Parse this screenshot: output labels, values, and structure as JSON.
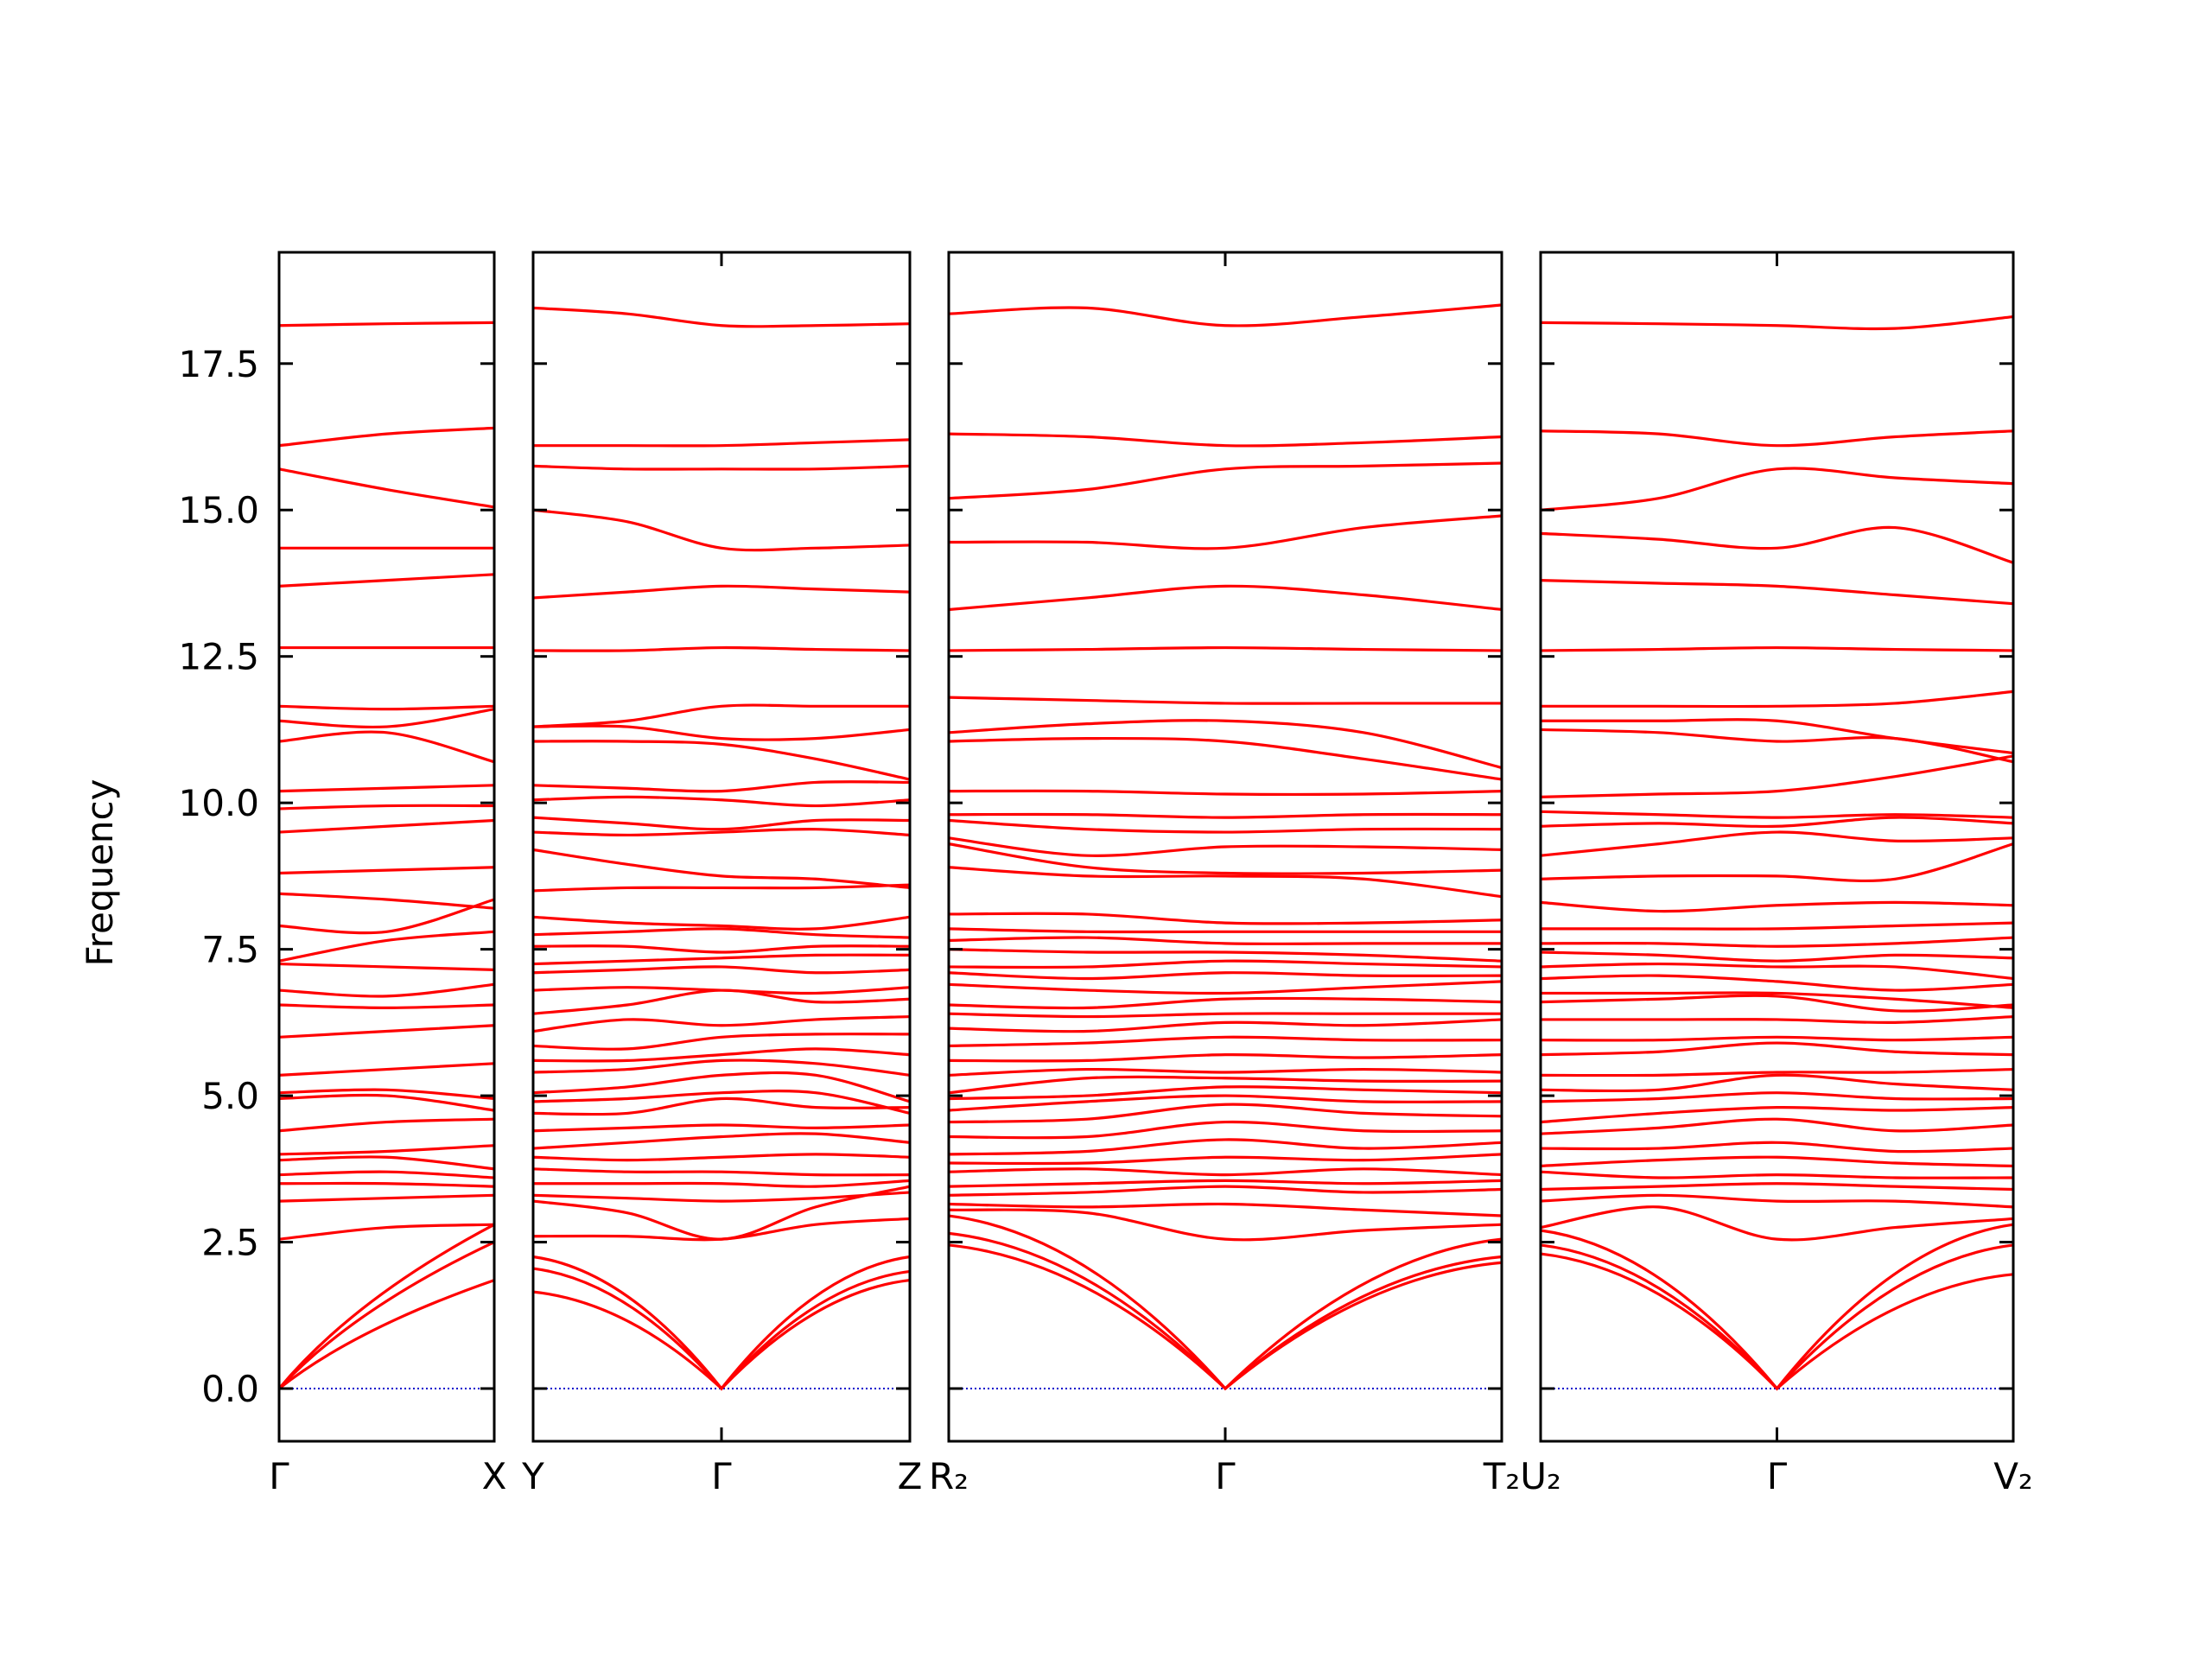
{
  "chart_data": {
    "type": "line",
    "title": "",
    "ylabel": "Frequency",
    "xlabel": "",
    "ylim": [
      -0.9,
      19.4
    ],
    "yticks": [
      "0.0",
      "2.5",
      "5.0",
      "7.5",
      "10.0",
      "12.5",
      "15.0",
      "17.5"
    ],
    "ytick_values": [
      0,
      2.5,
      5,
      7.5,
      10,
      12.5,
      15,
      17.5
    ],
    "grid": false,
    "legend": "none",
    "colors": {
      "bands": "#ff0000",
      "zero_line": "#0000cc",
      "axes": "#000000"
    },
    "panels": [
      {
        "start_label": "Γ",
        "end_label": "X",
        "gamma_position": "start",
        "acoustic": [
          {
            "y": [
              0,
              1.3,
              1.85
            ],
            "cusp": false
          },
          {
            "y": [
              0,
              1.7,
              2.5
            ],
            "cusp": false
          },
          {
            "y": [
              0,
              2.9,
              2.8
            ],
            "cusp": false
          }
        ],
        "bands": [
          [
            2.55,
            2.75,
            2.8
          ],
          [
            3.2,
            3.25,
            3.3
          ],
          [
            3.5,
            3.5,
            3.45
          ],
          [
            3.65,
            3.7,
            3.6
          ],
          [
            3.9,
            3.95,
            3.75
          ],
          [
            4.0,
            4.05,
            4.15
          ],
          [
            4.4,
            4.55,
            4.6
          ],
          [
            4.95,
            5.0,
            4.75
          ],
          [
            5.05,
            5.1,
            4.95
          ],
          [
            5.35,
            5.45,
            5.55
          ],
          [
            6.0,
            6.1,
            6.2
          ],
          [
            6.55,
            6.5,
            6.55
          ],
          [
            6.8,
            6.7,
            6.9
          ],
          [
            7.25,
            7.2,
            7.15
          ],
          [
            7.3,
            7.65,
            7.8
          ],
          [
            7.9,
            7.8,
            8.35
          ],
          [
            8.45,
            8.35,
            8.2
          ],
          [
            8.8,
            8.85,
            8.9
          ],
          [
            9.5,
            9.6,
            9.7
          ],
          [
            9.9,
            9.95,
            9.95
          ],
          [
            10.2,
            10.25,
            10.3
          ],
          [
            11.05,
            11.2,
            10.7
          ],
          [
            11.4,
            11.3,
            11.6
          ],
          [
            11.65,
            11.6,
            11.65
          ],
          [
            12.65,
            12.65,
            12.65
          ],
          [
            13.7,
            13.8,
            13.9
          ],
          [
            14.35,
            14.35,
            14.35
          ],
          [
            15.7,
            15.35,
            15.05
          ],
          [
            16.1,
            16.3,
            16.4
          ],
          [
            18.15,
            18.18,
            18.2
          ]
        ]
      },
      {
        "start_label": "Y",
        "end_label": "Z",
        "gamma_label": "Γ",
        "gamma_position": "middle",
        "acoustic": [
          {
            "y": [
              1.65,
              1.2,
              0,
              1.3,
              1.85
            ],
            "cusp": true
          },
          {
            "y": [
              2.05,
              1.5,
              0,
              1.6,
              2.0
            ],
            "cusp": true
          },
          {
            "y": [
              2.25,
              1.9,
              0,
              2.0,
              2.25
            ],
            "cusp": true
          }
        ],
        "bands": [
          [
            2.6,
            2.6,
            2.55,
            2.8,
            2.9
          ],
          [
            3.2,
            3.0,
            2.55,
            3.1,
            3.45
          ],
          [
            3.3,
            3.25,
            3.2,
            3.25,
            3.35
          ],
          [
            3.5,
            3.5,
            3.5,
            3.45,
            3.55
          ],
          [
            3.75,
            3.7,
            3.7,
            3.65,
            3.65
          ],
          [
            3.95,
            3.9,
            3.95,
            4.0,
            3.95
          ],
          [
            4.1,
            4.2,
            4.3,
            4.35,
            4.2
          ],
          [
            4.4,
            4.45,
            4.5,
            4.45,
            4.5
          ],
          [
            4.7,
            4.7,
            4.95,
            4.8,
            4.8
          ],
          [
            4.9,
            4.95,
            5.05,
            5.05,
            4.7
          ],
          [
            5.05,
            5.15,
            5.35,
            5.35,
            4.9
          ],
          [
            5.4,
            5.45,
            5.6,
            5.55,
            5.35
          ],
          [
            5.6,
            5.6,
            5.7,
            5.8,
            5.7
          ],
          [
            5.85,
            5.8,
            6.0,
            6.05,
            6.05
          ],
          [
            6.1,
            6.3,
            6.2,
            6.3,
            6.35
          ],
          [
            6.4,
            6.55,
            6.8,
            6.6,
            6.65
          ],
          [
            6.8,
            6.85,
            6.8,
            6.75,
            6.85
          ],
          [
            7.1,
            7.15,
            7.2,
            7.1,
            7.15
          ],
          [
            7.25,
            7.3,
            7.35,
            7.4,
            7.4
          ],
          [
            7.55,
            7.55,
            7.45,
            7.55,
            7.55
          ],
          [
            7.75,
            7.8,
            7.85,
            7.75,
            7.7
          ],
          [
            8.05,
            7.95,
            7.9,
            7.85,
            8.05
          ],
          [
            8.5,
            8.55,
            8.55,
            8.55,
            8.6
          ],
          [
            9.2,
            8.95,
            8.75,
            8.7,
            8.55
          ],
          [
            9.5,
            9.45,
            9.5,
            9.55,
            9.45
          ],
          [
            9.75,
            9.65,
            9.55,
            9.7,
            9.7
          ],
          [
            10.05,
            10.1,
            10.05,
            9.95,
            10.05
          ],
          [
            10.3,
            10.25,
            10.2,
            10.35,
            10.35
          ],
          [
            11.05,
            11.05,
            11.0,
            10.75,
            10.4
          ],
          [
            11.3,
            11.3,
            11.1,
            11.1,
            11.25
          ],
          [
            11.3,
            11.4,
            11.65,
            11.65,
            11.65
          ],
          [
            12.6,
            12.6,
            12.65,
            12.62,
            12.6
          ],
          [
            13.5,
            13.6,
            13.7,
            13.65,
            13.6
          ],
          [
            15.0,
            14.8,
            14.35,
            14.35,
            14.4
          ],
          [
            15.75,
            15.7,
            15.7,
            15.7,
            15.75
          ],
          [
            16.1,
            16.1,
            16.1,
            16.15,
            16.2
          ],
          [
            18.45,
            18.35,
            18.15,
            18.15,
            18.18
          ]
        ]
      },
      {
        "start_label": "R₂",
        "end_label": "T₂",
        "gamma_label": "Γ",
        "gamma_position": "middle",
        "acoustic": [
          {
            "y": [
              2.45,
              2.0,
              0,
              1.4,
              2.15
            ],
            "cusp": true
          },
          {
            "y": [
              2.65,
              2.1,
              0,
              1.8,
              2.25
            ],
            "cusp": true
          },
          {
            "y": [
              2.95,
              2.3,
              0,
              2.2,
              2.55
            ],
            "cusp": true
          }
        ],
        "bands": [
          [
            3.05,
            3.0,
            2.55,
            2.7,
            2.8
          ],
          [
            3.15,
            3.1,
            3.15,
            3.05,
            2.95
          ],
          [
            3.3,
            3.35,
            3.45,
            3.35,
            3.4
          ],
          [
            3.45,
            3.5,
            3.55,
            3.5,
            3.55
          ],
          [
            3.7,
            3.75,
            3.65,
            3.75,
            3.65
          ],
          [
            3.85,
            3.85,
            3.95,
            3.9,
            4.0
          ],
          [
            4.0,
            4.05,
            4.25,
            4.1,
            4.2
          ],
          [
            4.3,
            4.3,
            4.55,
            4.4,
            4.4
          ],
          [
            4.55,
            4.6,
            4.85,
            4.7,
            4.65
          ],
          [
            4.75,
            4.9,
            5.0,
            4.9,
            4.9
          ],
          [
            4.95,
            5.0,
            5.15,
            5.1,
            5.05
          ],
          [
            5.05,
            5.3,
            5.3,
            5.25,
            5.25
          ],
          [
            5.35,
            5.45,
            5.4,
            5.45,
            5.4
          ],
          [
            5.6,
            5.6,
            5.7,
            5.65,
            5.7
          ],
          [
            5.85,
            5.9,
            6.0,
            5.95,
            5.95
          ],
          [
            6.15,
            6.1,
            6.25,
            6.2,
            6.3
          ],
          [
            6.4,
            6.35,
            6.4,
            6.4,
            6.4
          ],
          [
            6.55,
            6.5,
            6.65,
            6.65,
            6.6
          ],
          [
            6.9,
            6.8,
            6.75,
            6.85,
            6.95
          ],
          [
            7.1,
            7.0,
            7.1,
            7.05,
            7.05
          ],
          [
            7.2,
            7.2,
            7.3,
            7.25,
            7.2
          ],
          [
            7.5,
            7.45,
            7.45,
            7.4,
            7.3
          ],
          [
            7.65,
            7.7,
            7.6,
            7.6,
            7.6
          ],
          [
            7.85,
            7.8,
            7.8,
            7.8,
            7.8
          ],
          [
            8.1,
            8.1,
            7.95,
            7.95,
            8.0
          ],
          [
            8.9,
            8.75,
            8.75,
            8.7,
            8.4
          ],
          [
            9.3,
            8.9,
            8.8,
            8.8,
            8.85
          ],
          [
            9.4,
            9.1,
            9.25,
            9.25,
            9.2
          ],
          [
            9.7,
            9.55,
            9.5,
            9.55,
            9.55
          ],
          [
            9.8,
            9.8,
            9.75,
            9.8,
            9.8
          ],
          [
            10.2,
            10.2,
            10.15,
            10.15,
            10.2
          ],
          [
            11.05,
            11.1,
            11.05,
            10.75,
            10.4
          ],
          [
            11.2,
            11.35,
            11.4,
            11.2,
            10.6
          ],
          [
            11.8,
            11.75,
            11.7,
            11.7,
            11.7
          ],
          [
            12.6,
            12.62,
            12.65,
            12.62,
            12.6
          ],
          [
            13.3,
            13.5,
            13.7,
            13.55,
            13.3
          ],
          [
            14.45,
            14.45,
            14.35,
            14.7,
            14.9
          ],
          [
            15.2,
            15.35,
            15.7,
            15.75,
            15.8
          ],
          [
            16.3,
            16.25,
            16.1,
            16.15,
            16.25
          ],
          [
            18.35,
            18.45,
            18.15,
            18.3,
            18.5
          ]
        ]
      },
      {
        "start_label": "U₂",
        "end_label": "V₂",
        "gamma_label": "Γ",
        "gamma_position": "middle",
        "acoustic": [
          {
            "y": [
              2.3,
              1.5,
              0,
              1.5,
              1.95
            ],
            "cusp": true
          },
          {
            "y": [
              2.45,
              1.8,
              0,
              1.8,
              2.45
            ],
            "cusp": true
          },
          {
            "y": [
              2.7,
              2.1,
              0,
              2.5,
              2.8
            ],
            "cusp": true
          }
        ],
        "bands": [
          [
            2.75,
            3.1,
            2.55,
            2.75,
            2.9
          ],
          [
            3.2,
            3.3,
            3.2,
            3.2,
            3.1
          ],
          [
            3.4,
            3.45,
            3.5,
            3.45,
            3.4
          ],
          [
            3.7,
            3.6,
            3.65,
            3.6,
            3.6
          ],
          [
            3.8,
            3.9,
            3.95,
            3.85,
            3.8
          ],
          [
            4.1,
            4.1,
            4.2,
            4.05,
            4.1
          ],
          [
            4.35,
            4.45,
            4.6,
            4.4,
            4.5
          ],
          [
            4.55,
            4.7,
            4.8,
            4.75,
            4.8
          ],
          [
            4.9,
            4.95,
            5.05,
            4.95,
            4.95
          ],
          [
            5.1,
            5.1,
            5.35,
            5.2,
            5.1
          ],
          [
            5.35,
            5.35,
            5.4,
            5.4,
            5.45
          ],
          [
            5.7,
            5.75,
            5.9,
            5.75,
            5.7
          ],
          [
            5.95,
            5.95,
            6.0,
            5.95,
            6.0
          ],
          [
            6.3,
            6.3,
            6.3,
            6.25,
            6.35
          ],
          [
            6.6,
            6.65,
            6.7,
            6.45,
            6.55
          ],
          [
            6.75,
            6.75,
            6.75,
            6.65,
            6.5
          ],
          [
            7.0,
            7.05,
            6.95,
            6.8,
            6.9
          ],
          [
            7.2,
            7.25,
            7.2,
            7.2,
            7.0
          ],
          [
            7.45,
            7.4,
            7.3,
            7.4,
            7.35
          ],
          [
            7.6,
            7.6,
            7.55,
            7.6,
            7.7
          ],
          [
            7.85,
            7.85,
            7.85,
            7.9,
            7.95
          ],
          [
            8.3,
            8.15,
            8.25,
            8.3,
            8.25
          ],
          [
            8.7,
            8.75,
            8.75,
            8.7,
            9.3
          ],
          [
            9.1,
            9.3,
            9.5,
            9.35,
            9.4
          ],
          [
            9.6,
            9.65,
            9.6,
            9.75,
            9.65
          ],
          [
            9.85,
            9.8,
            9.75,
            9.8,
            9.75
          ],
          [
            10.1,
            10.15,
            10.2,
            10.45,
            10.8
          ],
          [
            11.25,
            11.2,
            11.05,
            11.1,
            10.7
          ],
          [
            11.4,
            11.4,
            11.4,
            11.1,
            10.85
          ],
          [
            11.65,
            11.65,
            11.65,
            11.7,
            11.9
          ],
          [
            12.6,
            12.62,
            12.65,
            12.62,
            12.6
          ],
          [
            13.8,
            13.75,
            13.7,
            13.55,
            13.4
          ],
          [
            14.6,
            14.5,
            14.35,
            14.7,
            14.1
          ],
          [
            15.0,
            15.2,
            15.7,
            15.55,
            15.45
          ],
          [
            16.35,
            16.3,
            16.1,
            16.25,
            16.35
          ],
          [
            18.2,
            18.18,
            18.15,
            18.1,
            18.3
          ]
        ]
      }
    ]
  }
}
